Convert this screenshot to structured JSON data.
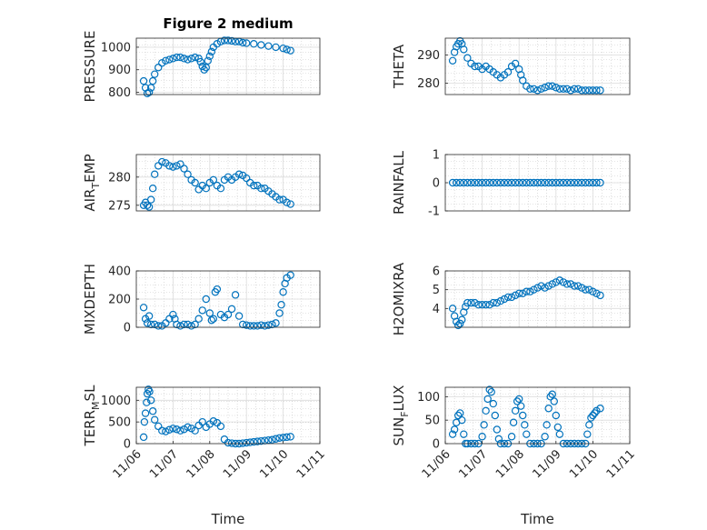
{
  "figure": {
    "title": "Figure 2 medium",
    "marker_color": "#0072BD"
  },
  "chart_data": [
    {
      "type": "scatter",
      "ylabel": "PRESSURE",
      "yticks": [
        "800",
        "900",
        "1000"
      ],
      "ylim": [
        790,
        1040
      ],
      "xlim": [
        0,
        5
      ],
      "grid": true,
      "show_xticks": false,
      "x": [
        0.2,
        0.25,
        0.3,
        0.35,
        0.4,
        0.45,
        0.5,
        0.6,
        0.7,
        0.8,
        0.9,
        1.0,
        1.1,
        1.2,
        1.3,
        1.4,
        1.5,
        1.6,
        1.7,
        1.75,
        1.8,
        1.85,
        1.9,
        1.95,
        2.0,
        2.05,
        2.1,
        2.2,
        2.3,
        2.4,
        2.5,
        2.6,
        2.7,
        2.8,
        2.9,
        3.0,
        3.2,
        3.4,
        3.6,
        3.8,
        4.0,
        4.1,
        4.2
      ],
      "y": [
        850,
        820,
        795,
        800,
        820,
        850,
        880,
        910,
        930,
        940,
        945,
        950,
        955,
        955,
        950,
        945,
        950,
        955,
        950,
        935,
        915,
        900,
        910,
        940,
        960,
        980,
        1000,
        1015,
        1025,
        1030,
        1030,
        1028,
        1025,
        1025,
        1020,
        1018,
        1015,
        1010,
        1005,
        1000,
        995,
        990,
        985
      ]
    },
    {
      "type": "scatter",
      "ylabel": "THETA",
      "yticks": [
        "280",
        "290"
      ],
      "ylim": [
        276,
        296
      ],
      "xlim": [
        0,
        5
      ],
      "grid": true,
      "show_xticks": false,
      "x": [
        0.2,
        0.25,
        0.3,
        0.35,
        0.4,
        0.45,
        0.5,
        0.6,
        0.7,
        0.8,
        0.9,
        1.0,
        1.1,
        1.2,
        1.3,
        1.4,
        1.5,
        1.6,
        1.7,
        1.8,
        1.9,
        2.0,
        2.05,
        2.1,
        2.2,
        2.3,
        2.4,
        2.5,
        2.6,
        2.7,
        2.8,
        2.9,
        3.0,
        3.1,
        3.2,
        3.3,
        3.4,
        3.5,
        3.6,
        3.7,
        3.8,
        3.9,
        4.0,
        4.1,
        4.2
      ],
      "y": [
        288,
        291,
        293,
        294,
        295,
        294,
        292,
        289,
        287,
        286,
        286,
        285,
        286,
        285,
        284,
        283,
        282,
        283,
        284,
        286,
        287,
        285,
        283,
        281,
        279,
        278,
        278,
        277.5,
        278,
        278.5,
        279,
        279,
        278.5,
        278,
        278,
        278,
        277.5,
        278,
        278,
        277.5,
        277.5,
        277.5,
        277.5,
        277.5,
        277.5
      ]
    },
    {
      "type": "scatter",
      "ylabel": "AIR_TEMP",
      "yticks": [
        "275",
        "280"
      ],
      "ylim": [
        274,
        284
      ],
      "xlim": [
        0,
        5
      ],
      "grid": true,
      "show_xticks": false,
      "x": [
        0.2,
        0.25,
        0.3,
        0.35,
        0.4,
        0.45,
        0.5,
        0.6,
        0.7,
        0.8,
        0.9,
        1.0,
        1.1,
        1.2,
        1.3,
        1.4,
        1.5,
        1.6,
        1.7,
        1.8,
        1.9,
        2.0,
        2.1,
        2.2,
        2.3,
        2.4,
        2.5,
        2.6,
        2.7,
        2.8,
        2.9,
        3.0,
        3.1,
        3.2,
        3.3,
        3.4,
        3.5,
        3.6,
        3.7,
        3.8,
        3.9,
        4.0,
        4.1,
        4.2
      ],
      "y": [
        275,
        275.5,
        275,
        274.7,
        276,
        278,
        280.5,
        282,
        282.7,
        282.5,
        282,
        281.8,
        282,
        282.3,
        281.5,
        280.5,
        279.5,
        279,
        277.8,
        278.5,
        278,
        279,
        279.5,
        278.5,
        278,
        279.5,
        280,
        279.5,
        280,
        280.5,
        280.3,
        279.8,
        279,
        278.5,
        278.5,
        278,
        278,
        277.5,
        277,
        276.5,
        276,
        276,
        275.5,
        275.2
      ]
    },
    {
      "type": "scatter",
      "ylabel": "RAINFALL",
      "yticks": [
        "-1",
        "0",
        "1"
      ],
      "ylim": [
        -1,
        1
      ],
      "xlim": [
        0,
        5
      ],
      "grid": true,
      "show_xticks": false,
      "x": [
        0.2,
        0.3,
        0.4,
        0.5,
        0.6,
        0.7,
        0.8,
        0.9,
        1.0,
        1.1,
        1.2,
        1.3,
        1.4,
        1.5,
        1.6,
        1.7,
        1.8,
        1.9,
        2.0,
        2.1,
        2.2,
        2.3,
        2.4,
        2.5,
        2.6,
        2.7,
        2.8,
        2.9,
        3.0,
        3.1,
        3.2,
        3.3,
        3.4,
        3.5,
        3.6,
        3.7,
        3.8,
        3.9,
        4.0,
        4.1,
        4.2
      ],
      "y": [
        0,
        0,
        0,
        0,
        0,
        0,
        0,
        0,
        0,
        0,
        0,
        0,
        0,
        0,
        0,
        0,
        0,
        0,
        0,
        0,
        0,
        0,
        0,
        0,
        0,
        0,
        0,
        0,
        0,
        0,
        0,
        0,
        0,
        0,
        0,
        0,
        0,
        0,
        0,
        0,
        0
      ]
    },
    {
      "type": "scatter",
      "ylabel": "MIXDEPTH",
      "yticks": [
        "0",
        "200",
        "400"
      ],
      "ylim": [
        0,
        400
      ],
      "xlim": [
        0,
        5
      ],
      "grid": true,
      "show_xticks": false,
      "x": [
        0.2,
        0.25,
        0.3,
        0.35,
        0.4,
        0.5,
        0.6,
        0.7,
        0.8,
        0.9,
        1.0,
        1.05,
        1.1,
        1.2,
        1.3,
        1.4,
        1.5,
        1.6,
        1.7,
        1.8,
        1.9,
        2.0,
        2.05,
        2.1,
        2.15,
        2.2,
        2.3,
        2.4,
        2.5,
        2.6,
        2.7,
        2.8,
        2.9,
        3.0,
        3.1,
        3.2,
        3.3,
        3.4,
        3.5,
        3.6,
        3.7,
        3.8,
        3.9,
        3.95,
        4.0,
        4.05,
        4.1,
        4.2
      ],
      "y": [
        140,
        60,
        30,
        80,
        20,
        20,
        10,
        10,
        30,
        60,
        90,
        60,
        20,
        10,
        20,
        20,
        10,
        20,
        60,
        120,
        200,
        100,
        50,
        60,
        250,
        270,
        90,
        70,
        90,
        130,
        230,
        80,
        20,
        15,
        10,
        10,
        10,
        15,
        10,
        15,
        20,
        30,
        100,
        160,
        250,
        310,
        350,
        370
      ]
    },
    {
      "type": "scatter",
      "ylabel": "H2OMIXRA",
      "yticks": [
        "4",
        "5",
        "6"
      ],
      "ylim": [
        3,
        6
      ],
      "xlim": [
        0,
        5
      ],
      "grid": true,
      "show_xticks": false,
      "x": [
        0.2,
        0.25,
        0.3,
        0.35,
        0.4,
        0.45,
        0.5,
        0.55,
        0.6,
        0.7,
        0.8,
        0.9,
        1.0,
        1.1,
        1.2,
        1.3,
        1.4,
        1.5,
        1.6,
        1.7,
        1.8,
        1.9,
        2.0,
        2.1,
        2.2,
        2.3,
        2.4,
        2.5,
        2.6,
        2.7,
        2.8,
        2.9,
        3.0,
        3.1,
        3.2,
        3.3,
        3.4,
        3.5,
        3.6,
        3.7,
        3.8,
        3.9,
        4.0,
        4.1,
        4.2
      ],
      "y": [
        4.0,
        3.6,
        3.3,
        3.1,
        3.2,
        3.4,
        3.8,
        4.1,
        4.3,
        4.3,
        4.3,
        4.2,
        4.2,
        4.2,
        4.2,
        4.3,
        4.3,
        4.4,
        4.5,
        4.6,
        4.6,
        4.7,
        4.8,
        4.8,
        4.9,
        4.9,
        5.0,
        5.1,
        5.2,
        5.1,
        5.2,
        5.3,
        5.4,
        5.5,
        5.4,
        5.3,
        5.3,
        5.2,
        5.2,
        5.1,
        5.0,
        5.0,
        4.9,
        4.8,
        4.7
      ]
    },
    {
      "type": "scatter",
      "ylabel": "TERR_MSL",
      "yticks": [
        "0",
        "500",
        "1000"
      ],
      "ylim": [
        0,
        1300
      ],
      "xlim": [
        0,
        5
      ],
      "grid": true,
      "show_xticks": true,
      "xticks": [
        "11/06",
        "11/07",
        "11/08",
        "11/09",
        "11/10",
        "11/11"
      ],
      "xlabel": "Time",
      "x": [
        0.2,
        0.22,
        0.25,
        0.28,
        0.3,
        0.33,
        0.36,
        0.4,
        0.45,
        0.5,
        0.6,
        0.7,
        0.8,
        0.9,
        1.0,
        1.1,
        1.2,
        1.3,
        1.4,
        1.5,
        1.6,
        1.7,
        1.8,
        1.9,
        2.0,
        2.1,
        2.2,
        2.3,
        2.4,
        2.5,
        2.6,
        2.7,
        2.8,
        2.9,
        3.0,
        3.1,
        3.2,
        3.3,
        3.4,
        3.5,
        3.6,
        3.7,
        3.8,
        3.9,
        4.0,
        4.1,
        4.2
      ],
      "y": [
        150,
        500,
        700,
        950,
        1150,
        1250,
        1200,
        1000,
        750,
        550,
        400,
        300,
        280,
        320,
        350,
        330,
        300,
        330,
        380,
        350,
        300,
        420,
        500,
        380,
        450,
        520,
        480,
        400,
        100,
        20,
        10,
        0,
        0,
        10,
        20,
        30,
        40,
        50,
        60,
        70,
        80,
        90,
        110,
        130,
        140,
        150,
        160
      ]
    },
    {
      "type": "scatter",
      "ylabel": "SUN_FLUX",
      "yticks": [
        "0",
        "50",
        "100"
      ],
      "ylim": [
        0,
        120
      ],
      "xlim": [
        0,
        5
      ],
      "grid": true,
      "show_xticks": true,
      "xticks": [
        "11/06",
        "11/07",
        "11/08",
        "11/09",
        "11/10",
        "11/11"
      ],
      "xlabel": "Time",
      "x": [
        0.2,
        0.25,
        0.3,
        0.35,
        0.4,
        0.45,
        0.5,
        0.55,
        0.6,
        0.7,
        0.8,
        0.9,
        1.0,
        1.05,
        1.1,
        1.15,
        1.2,
        1.25,
        1.3,
        1.35,
        1.4,
        1.45,
        1.5,
        1.6,
        1.7,
        1.8,
        1.85,
        1.9,
        1.95,
        2.0,
        2.05,
        2.1,
        2.15,
        2.2,
        2.3,
        2.4,
        2.5,
        2.6,
        2.7,
        2.75,
        2.8,
        2.85,
        2.9,
        2.95,
        3.0,
        3.05,
        3.1,
        3.2,
        3.3,
        3.4,
        3.5,
        3.6,
        3.7,
        3.8,
        3.85,
        3.9,
        3.95,
        4.0,
        4.05,
        4.1,
        4.2
      ],
      "y": [
        20,
        30,
        45,
        60,
        65,
        50,
        20,
        0,
        0,
        0,
        0,
        0,
        15,
        40,
        70,
        95,
        115,
        110,
        85,
        60,
        30,
        10,
        0,
        0,
        0,
        15,
        45,
        70,
        90,
        95,
        80,
        60,
        40,
        20,
        0,
        0,
        0,
        0,
        15,
        40,
        75,
        100,
        105,
        90,
        60,
        35,
        20,
        0,
        0,
        0,
        0,
        0,
        0,
        0,
        20,
        40,
        55,
        60,
        65,
        70,
        75
      ]
    }
  ]
}
